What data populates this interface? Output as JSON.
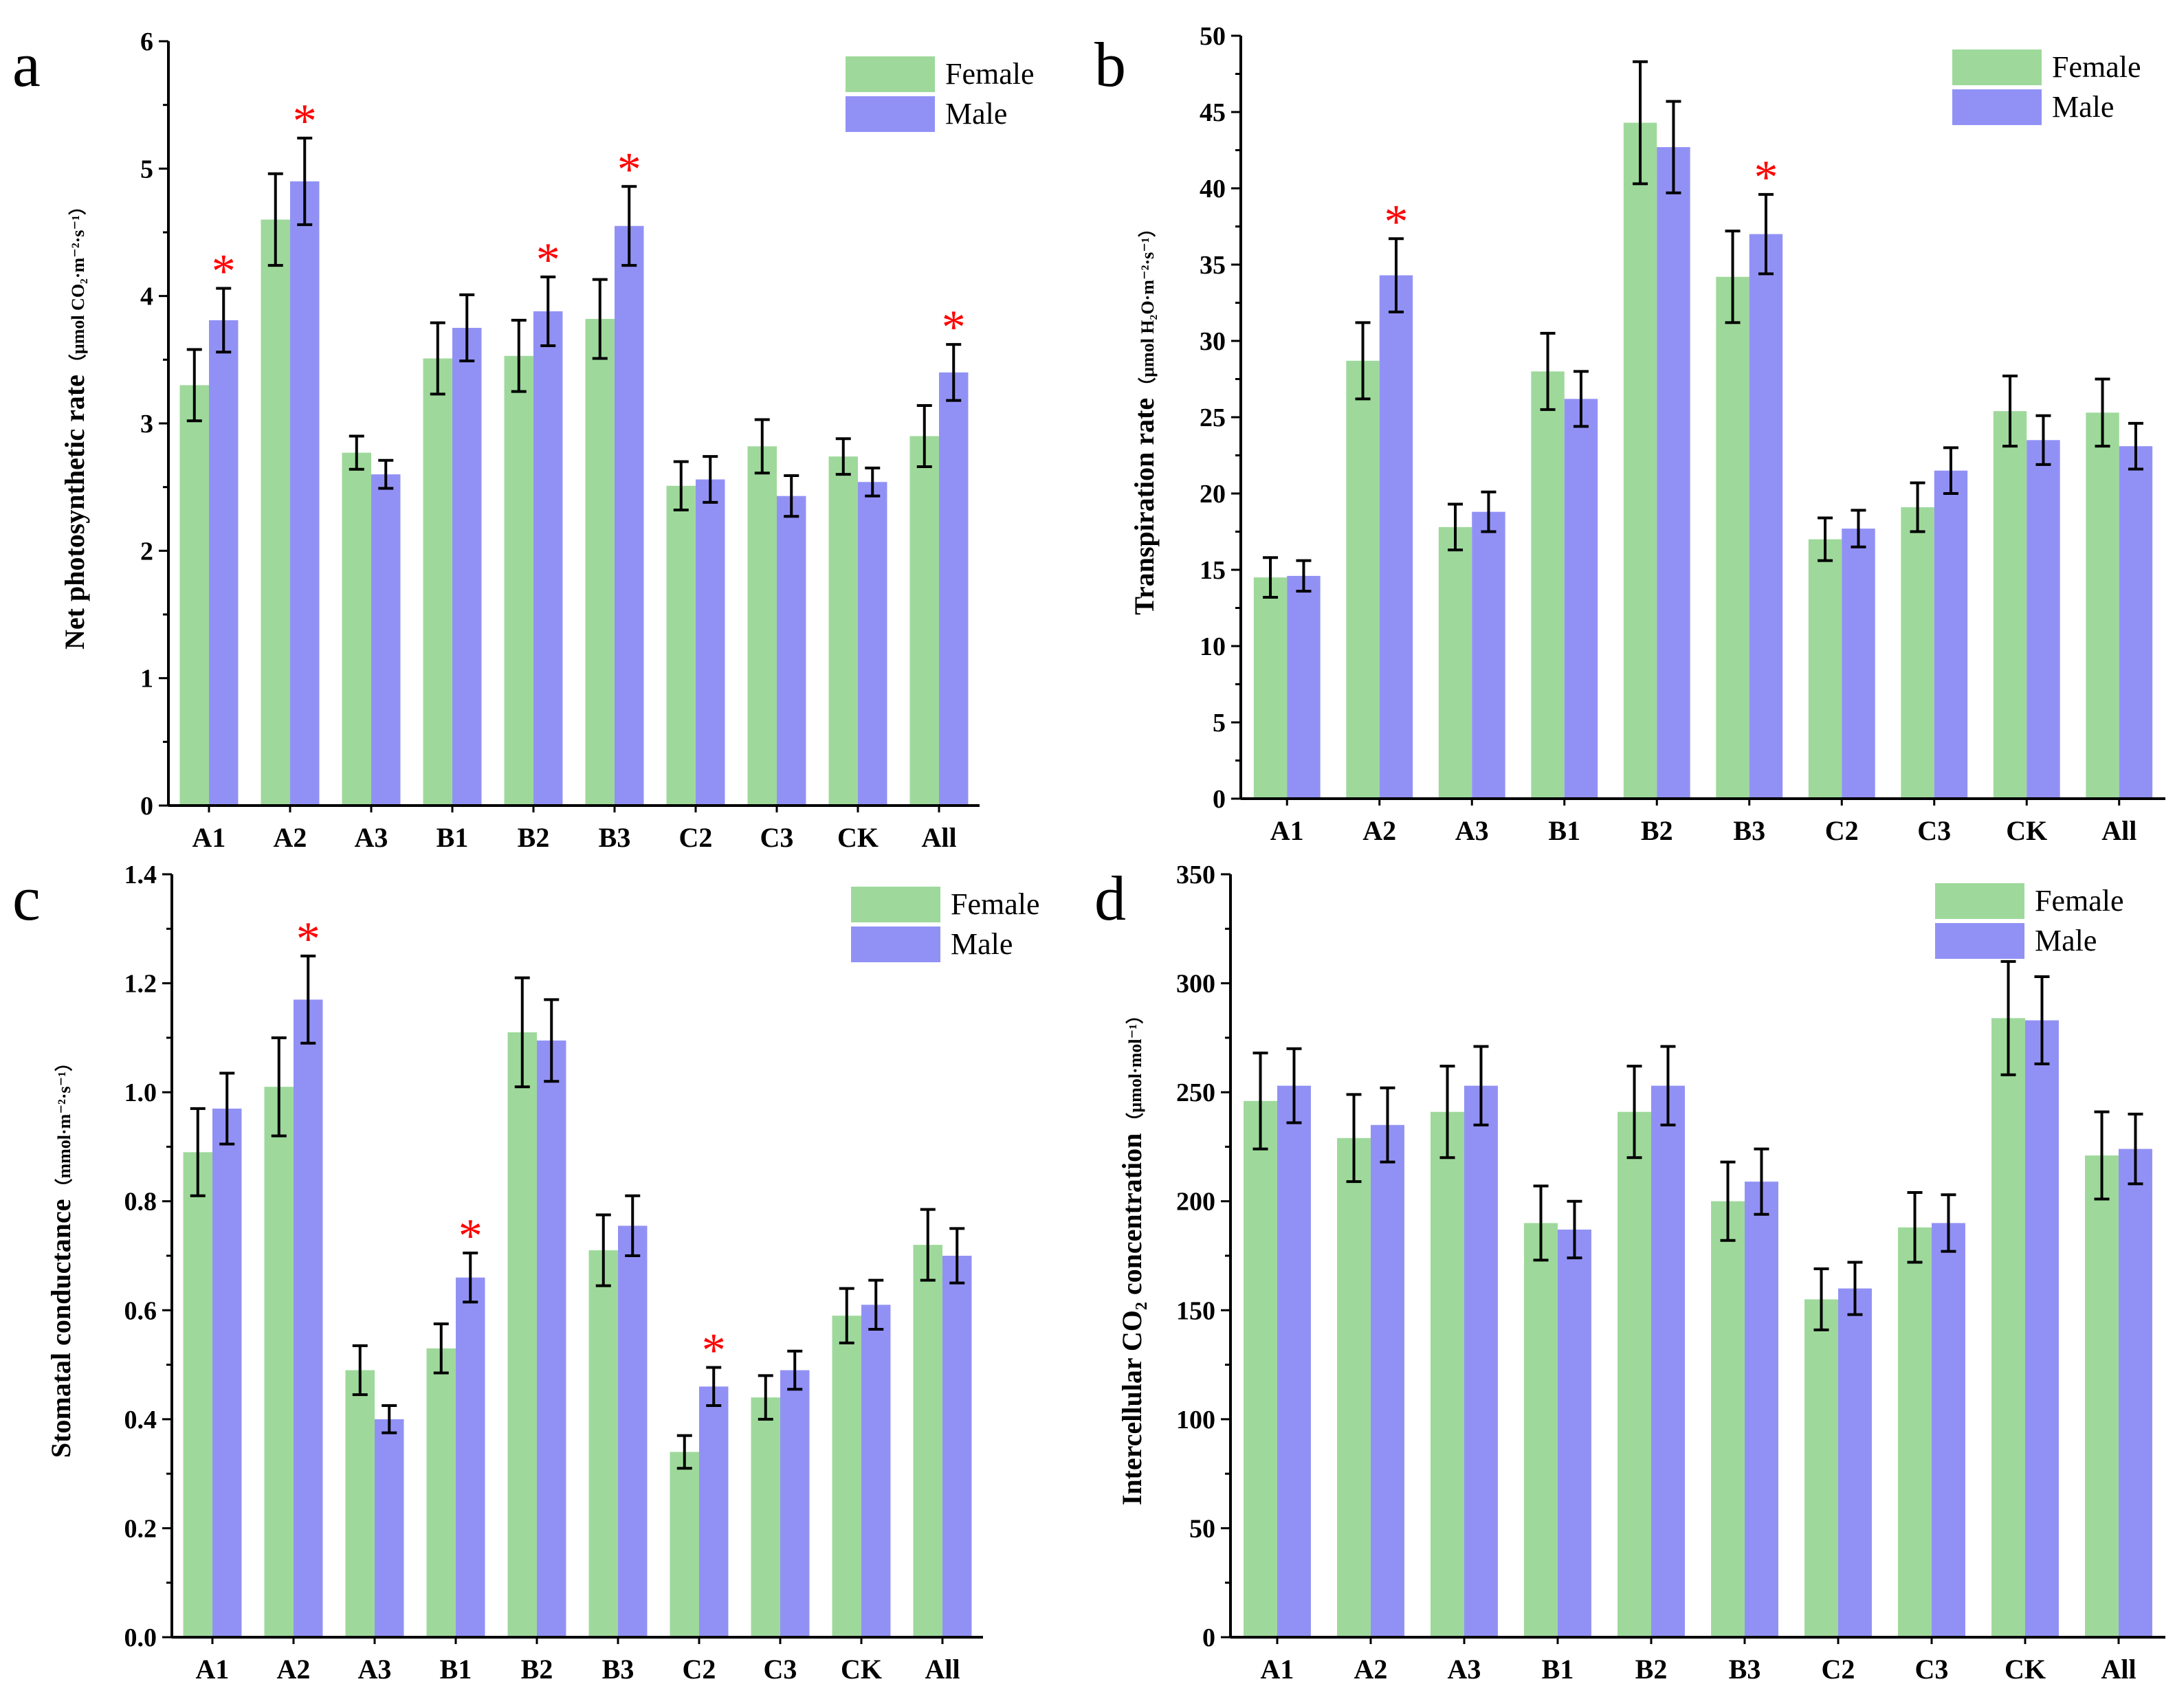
{
  "colors": {
    "female": "#9ed99b",
    "male": "#9191f5",
    "star": "#ff0000",
    "axis": "#000000"
  },
  "legend": {
    "female": "Female",
    "male": "Male"
  },
  "chart_data": [
    {
      "panel": "a",
      "type": "bar",
      "categories": [
        "A1",
        "A2",
        "A3",
        "B1",
        "B2",
        "B3",
        "C2",
        "C3",
        "CK",
        "All"
      ],
      "series": [
        {
          "name": "Female",
          "values": [
            3.3,
            4.6,
            2.77,
            3.51,
            3.53,
            3.82,
            2.51,
            2.82,
            2.74,
            2.9
          ],
          "errors": [
            0.28,
            0.36,
            0.13,
            0.28,
            0.28,
            0.31,
            0.19,
            0.21,
            0.14,
            0.24
          ]
        },
        {
          "name": "Male",
          "values": [
            3.81,
            4.9,
            2.6,
            3.75,
            3.88,
            4.55,
            2.56,
            2.43,
            2.54,
            3.4
          ],
          "errors": [
            0.25,
            0.34,
            0.11,
            0.26,
            0.27,
            0.31,
            0.18,
            0.16,
            0.11,
            0.22
          ]
        }
      ],
      "significant": [
        1,
        1,
        0,
        0,
        1,
        1,
        0,
        0,
        0,
        1
      ],
      "ylim": [
        0,
        6
      ],
      "yticks": [
        "0",
        "1",
        "2",
        "3",
        "4",
        "5",
        "6"
      ],
      "ylabel": "Net photosynthetic rate",
      "ylabel_unit": "（μmol CO₂·m⁻²·s⁻¹）",
      "xlabel": ""
    },
    {
      "panel": "b",
      "type": "bar",
      "categories": [
        "A1",
        "A2",
        "A3",
        "B1",
        "B2",
        "B3",
        "C2",
        "C3",
        "CK",
        "All"
      ],
      "series": [
        {
          "name": "Female",
          "values": [
            14.5,
            28.7,
            17.8,
            28.0,
            44.3,
            34.2,
            17.0,
            19.1,
            25.4,
            25.3
          ],
          "errors": [
            1.3,
            2.5,
            1.5,
            2.5,
            4.0,
            3.0,
            1.4,
            1.6,
            2.3,
            2.2
          ]
        },
        {
          "name": "Male",
          "values": [
            14.6,
            34.3,
            18.8,
            26.2,
            42.7,
            37.0,
            17.7,
            21.5,
            23.5,
            23.1
          ],
          "errors": [
            1.0,
            2.4,
            1.3,
            1.8,
            3.0,
            2.6,
            1.2,
            1.5,
            1.6,
            1.5
          ]
        }
      ],
      "significant": [
        0,
        1,
        0,
        0,
        0,
        1,
        0,
        0,
        0,
        0
      ],
      "ylim": [
        0,
        50
      ],
      "yticks": [
        "0",
        "5",
        "10",
        "15",
        "20",
        "25",
        "30",
        "35",
        "40",
        "45",
        "50"
      ],
      "ylabel": "Transpiration rate",
      "ylabel_unit": "（μmol H₂O·m⁻²·s⁻¹）",
      "xlabel": ""
    },
    {
      "panel": "c",
      "type": "bar",
      "categories": [
        "A1",
        "A2",
        "A3",
        "B1",
        "B2",
        "B3",
        "C2",
        "C3",
        "CK",
        "All"
      ],
      "series": [
        {
          "name": "Female",
          "values": [
            0.89,
            1.01,
            0.49,
            0.53,
            1.11,
            0.71,
            0.34,
            0.44,
            0.59,
            0.72
          ],
          "errors": [
            0.08,
            0.09,
            0.045,
            0.045,
            0.1,
            0.065,
            0.03,
            0.04,
            0.05,
            0.065
          ]
        },
        {
          "name": "Male",
          "values": [
            0.97,
            1.17,
            0.4,
            0.66,
            1.095,
            0.755,
            0.46,
            0.49,
            0.61,
            0.7
          ],
          "errors": [
            0.065,
            0.08,
            0.025,
            0.045,
            0.075,
            0.055,
            0.035,
            0.035,
            0.045,
            0.05
          ]
        }
      ],
      "significant": [
        0,
        1,
        0,
        1,
        0,
        0,
        1,
        0,
        0,
        0
      ],
      "ylim": [
        0,
        1.4
      ],
      "yticks": [
        "0.0",
        "0.2",
        "0.4",
        "0.6",
        "0.8",
        "1.0",
        "1.2",
        "1.4"
      ],
      "ylabel": "Stomatal conductance",
      "ylabel_unit": "（mmol·m⁻²·s⁻¹）",
      "xlabel": ""
    },
    {
      "panel": "d",
      "type": "bar",
      "categories": [
        "A1",
        "A2",
        "A3",
        "B1",
        "B2",
        "B3",
        "C2",
        "C3",
        "CK",
        "All"
      ],
      "series": [
        {
          "name": "Female",
          "values": [
            246,
            229,
            241,
            190,
            241,
            200,
            155,
            188,
            284,
            221
          ],
          "errors": [
            22,
            20,
            21,
            17,
            21,
            18,
            14,
            16,
            26,
            20
          ]
        },
        {
          "name": "Male",
          "values": [
            253,
            235,
            253,
            187,
            253,
            209,
            160,
            190,
            283,
            224
          ],
          "errors": [
            17,
            17,
            18,
            13,
            18,
            15,
            12,
            13,
            20,
            16
          ]
        }
      ],
      "significant": [
        0,
        0,
        0,
        0,
        0,
        0,
        0,
        0,
        0,
        0
      ],
      "ylim": [
        0,
        350
      ],
      "yticks": [
        "0",
        "50",
        "100",
        "150",
        "200",
        "250",
        "300",
        "350"
      ],
      "ylabel": "Intercellular CO₂ concentration",
      "ylabel_unit": "（μmol·mol⁻¹）",
      "xlabel": ""
    }
  ]
}
